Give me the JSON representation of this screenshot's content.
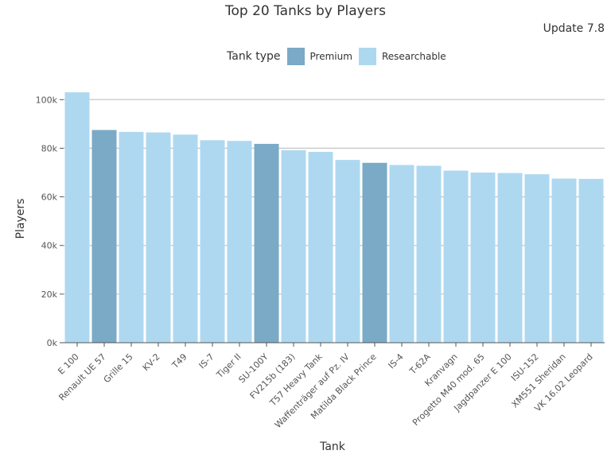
{
  "chart_data": {
    "type": "bar",
    "title": "Top 20 Tanks by Players",
    "subtitle": "Update 7.8",
    "xlabel": "Tank",
    "ylabel": "Players",
    "ylim": [
      0,
      105000
    ],
    "yticks": [
      0,
      20000,
      40000,
      60000,
      80000,
      100000
    ],
    "ytick_labels": [
      "0k",
      "20k",
      "40k",
      "60k",
      "80k",
      "100k"
    ],
    "legend": {
      "title": "Tank type",
      "placement": "top",
      "entries": [
        {
          "name": "Premium",
          "color": "#7aaac6"
        },
        {
          "name": "Researchable",
          "color": "#aed8f0"
        }
      ]
    },
    "categories": [
      "E 100",
      "Renault UE 57",
      "Grille 15",
      "KV-2",
      "T49",
      "IS-7",
      "Tiger II",
      "SU-100Y",
      "FV215b (183)",
      "T57 Heavy Tank",
      "Waffenträger auf Pz. IV",
      "Matilda Black Prince",
      "IS-4",
      "T-62A",
      "Kranvagn",
      "Progetto M40 mod. 65",
      "Jagdpanzer E 100",
      "ISU-152",
      "XM551 Sheridan",
      "VK 16.02 Leopard"
    ],
    "values": [
      103000,
      87500,
      86700,
      86500,
      85600,
      83300,
      83000,
      81800,
      79200,
      78500,
      75200,
      74000,
      73100,
      72800,
      70800,
      70000,
      69800,
      69300,
      67500,
      67400
    ],
    "types": [
      "Researchable",
      "Premium",
      "Researchable",
      "Researchable",
      "Researchable",
      "Researchable",
      "Researchable",
      "Premium",
      "Researchable",
      "Researchable",
      "Researchable",
      "Premium",
      "Researchable",
      "Researchable",
      "Researchable",
      "Researchable",
      "Researchable",
      "Researchable",
      "Researchable",
      "Researchable"
    ]
  }
}
